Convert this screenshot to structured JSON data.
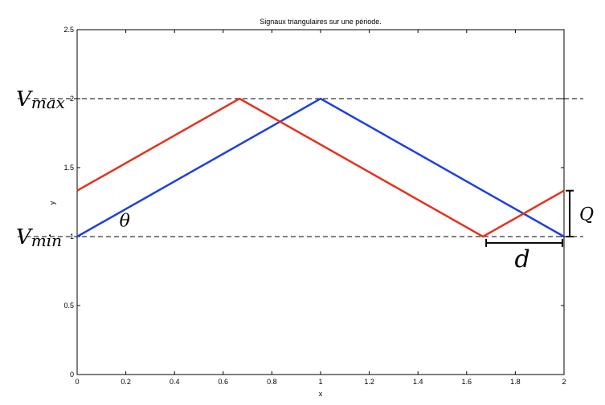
{
  "chart_data": {
    "type": "line",
    "title": "Signaux triangulaires sur une période.",
    "xlabel": "x",
    "ylabel": "y",
    "xlim": [
      0,
      2
    ],
    "ylim": [
      0,
      2.5
    ],
    "xticks": [
      0,
      0.2,
      0.4,
      0.6,
      0.8,
      1,
      1.2,
      1.4,
      1.6,
      1.8,
      2
    ],
    "xtick_labels": [
      "0",
      "0.2",
      "0.4",
      "0.6",
      "0.8",
      "1",
      "1.2",
      "1.4",
      "1.6",
      "1.8",
      "2"
    ],
    "yticks": [
      0,
      0.5,
      1,
      1.5,
      2,
      2.5
    ],
    "ytick_labels": [
      "0",
      "0.5",
      "1",
      "1.5",
      "2",
      "2.5"
    ],
    "grid": false,
    "series": [
      {
        "color": "#1f3fe0",
        "x": [
          0,
          1,
          2
        ],
        "y": [
          1,
          2,
          1
        ]
      },
      {
        "color": "#e8301a",
        "x": [
          0,
          0.667,
          1.667,
          2
        ],
        "y": [
          1.333,
          2,
          1,
          1.333
        ]
      }
    ],
    "reference_lines": [
      {
        "y": 2,
        "style": "dashed",
        "label": "Vmax",
        "label_main": "V",
        "label_sub": "max"
      },
      {
        "y": 1,
        "style": "dashed",
        "label": "Vmin",
        "label_main": "V",
        "label_sub": "min"
      }
    ],
    "annotations": [
      {
        "text": "θ",
        "x": 0.2,
        "y": 1.06
      },
      {
        "text": "Q",
        "type": "vertical-bracket",
        "x": 2.02,
        "y_range": [
          1,
          1.333
        ]
      },
      {
        "text": "d",
        "type": "horizontal-bracket",
        "x_range": [
          1.667,
          2
        ],
        "y": 0.96
      }
    ]
  }
}
